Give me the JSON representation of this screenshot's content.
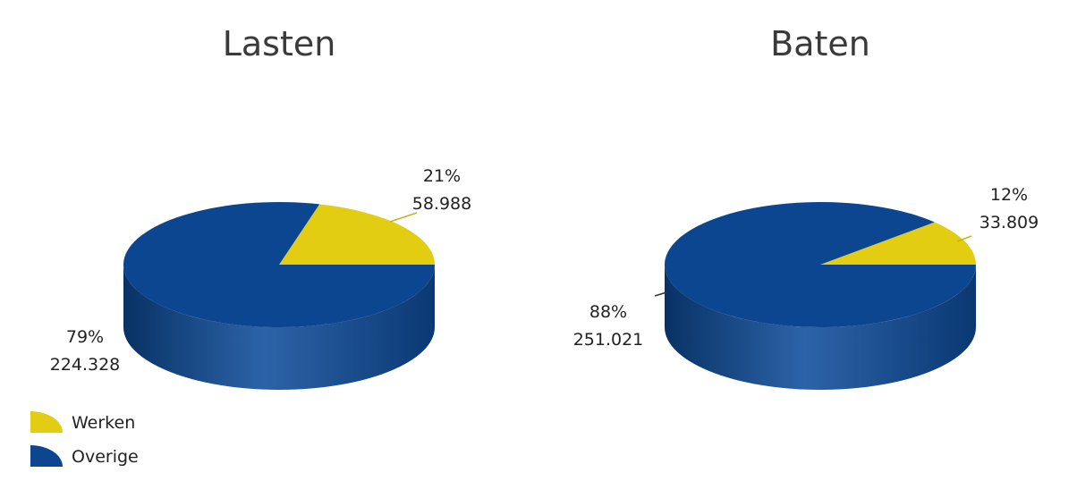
{
  "chart_data": [
    {
      "type": "pie",
      "title": "Lasten",
      "slices": [
        {
          "name": "Werken",
          "percent_label": "21%",
          "value_label": "58.988",
          "value": 58988
        },
        {
          "name": "Overige",
          "percent_label": "79%",
          "value_label": "224.328",
          "value": 224328
        }
      ]
    },
    {
      "type": "pie",
      "title": "Baten",
      "slices": [
        {
          "name": "Werken",
          "percent_label": "12%",
          "value_label": "33.809",
          "value": 33809
        },
        {
          "name": "Overige",
          "percent_label": "88%",
          "value_label": "251.021",
          "value": 251021
        }
      ]
    }
  ],
  "legend": [
    {
      "label": "Werken",
      "color": "#e2cd12"
    },
    {
      "label": "Overige",
      "color": "#0d4690"
    }
  ],
  "colors": {
    "werken_top": "#e2cd12",
    "werken_side": "#b8a50b",
    "overige_top": "#0d4690",
    "overige_side": "#0b3c7c",
    "leader": "#c9b21a"
  }
}
